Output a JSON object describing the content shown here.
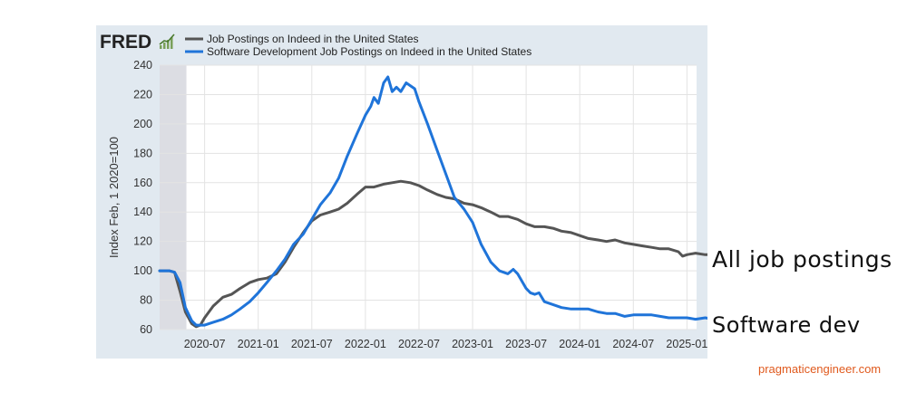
{
  "chart_data": {
    "type": "line",
    "source_logo": "FRED",
    "ylabel": "Index Feb, 1 2020=100",
    "ylim": [
      60,
      240
    ],
    "yticks": [
      60,
      80,
      100,
      120,
      140,
      160,
      180,
      200,
      220,
      240
    ],
    "xlim": [
      2020.08,
      2025.09
    ],
    "xticks": [
      {
        "label": "2020-07",
        "value": 2020.5
      },
      {
        "label": "2021-01",
        "value": 2021.0
      },
      {
        "label": "2021-07",
        "value": 2021.5
      },
      {
        "label": "2022-01",
        "value": 2022.0
      },
      {
        "label": "2022-07",
        "value": 2022.5
      },
      {
        "label": "2023-01",
        "value": 2023.0
      },
      {
        "label": "2023-07",
        "value": 2023.5
      },
      {
        "label": "2024-01",
        "value": 2024.0
      },
      {
        "label": "2024-07",
        "value": 2024.5
      },
      {
        "label": "2025-01",
        "value": 2025.0
      }
    ],
    "recession_shade": [
      2020.08,
      2020.33
    ],
    "grid": true,
    "legend_position": "top-left",
    "series": [
      {
        "name": "Job Postings on Indeed in the United States",
        "color": "#555555",
        "points": [
          [
            2020.08,
            100
          ],
          [
            2020.17,
            100
          ],
          [
            2020.22,
            99
          ],
          [
            2020.27,
            86
          ],
          [
            2020.32,
            72
          ],
          [
            2020.38,
            64
          ],
          [
            2020.42,
            62
          ],
          [
            2020.46,
            63
          ],
          [
            2020.5,
            68
          ],
          [
            2020.58,
            76
          ],
          [
            2020.67,
            82
          ],
          [
            2020.75,
            84
          ],
          [
            2020.83,
            88
          ],
          [
            2020.92,
            92
          ],
          [
            2021.0,
            94
          ],
          [
            2021.08,
            95
          ],
          [
            2021.17,
            98
          ],
          [
            2021.25,
            106
          ],
          [
            2021.33,
            116
          ],
          [
            2021.42,
            126
          ],
          [
            2021.5,
            134
          ],
          [
            2021.58,
            138
          ],
          [
            2021.67,
            140
          ],
          [
            2021.75,
            142
          ],
          [
            2021.83,
            146
          ],
          [
            2021.92,
            152
          ],
          [
            2022.0,
            157
          ],
          [
            2022.08,
            157
          ],
          [
            2022.17,
            159
          ],
          [
            2022.25,
            160
          ],
          [
            2022.33,
            161
          ],
          [
            2022.42,
            160
          ],
          [
            2022.5,
            158
          ],
          [
            2022.58,
            155
          ],
          [
            2022.67,
            152
          ],
          [
            2022.75,
            150
          ],
          [
            2022.83,
            149
          ],
          [
            2022.92,
            146
          ],
          [
            2023.0,
            145
          ],
          [
            2023.08,
            143
          ],
          [
            2023.17,
            140
          ],
          [
            2023.25,
            137
          ],
          [
            2023.33,
            137
          ],
          [
            2023.42,
            135
          ],
          [
            2023.5,
            132
          ],
          [
            2023.58,
            130
          ],
          [
            2023.67,
            130
          ],
          [
            2023.75,
            129
          ],
          [
            2023.83,
            127
          ],
          [
            2023.92,
            126
          ],
          [
            2024.0,
            124
          ],
          [
            2024.08,
            122
          ],
          [
            2024.17,
            121
          ],
          [
            2024.25,
            120
          ],
          [
            2024.33,
            121
          ],
          [
            2024.42,
            119
          ],
          [
            2024.5,
            118
          ],
          [
            2024.58,
            117
          ],
          [
            2024.67,
            116
          ],
          [
            2024.75,
            115
          ],
          [
            2024.83,
            115
          ],
          [
            2024.92,
            113
          ],
          [
            2024.96,
            110
          ],
          [
            2025.0,
            111
          ],
          [
            2025.08,
            112
          ],
          [
            2025.17,
            111
          ],
          [
            2025.25,
            111
          ],
          [
            2025.3,
            110
          ]
        ]
      },
      {
        "name": "Software Development Job Postings on Indeed in the United States",
        "color": "#1f74d9",
        "points": [
          [
            2020.08,
            100
          ],
          [
            2020.17,
            100
          ],
          [
            2020.22,
            99
          ],
          [
            2020.27,
            92
          ],
          [
            2020.32,
            75
          ],
          [
            2020.38,
            66
          ],
          [
            2020.42,
            63
          ],
          [
            2020.5,
            63
          ],
          [
            2020.58,
            65
          ],
          [
            2020.67,
            67
          ],
          [
            2020.75,
            70
          ],
          [
            2020.83,
            74
          ],
          [
            2020.92,
            79
          ],
          [
            2021.0,
            85
          ],
          [
            2021.08,
            92
          ],
          [
            2021.17,
            100
          ],
          [
            2021.25,
            108
          ],
          [
            2021.33,
            118
          ],
          [
            2021.42,
            125
          ],
          [
            2021.5,
            135
          ],
          [
            2021.58,
            145
          ],
          [
            2021.67,
            153
          ],
          [
            2021.75,
            163
          ],
          [
            2021.83,
            178
          ],
          [
            2021.92,
            193
          ],
          [
            2022.0,
            206
          ],
          [
            2022.05,
            212
          ],
          [
            2022.08,
            218
          ],
          [
            2022.12,
            214
          ],
          [
            2022.17,
            228
          ],
          [
            2022.21,
            232
          ],
          [
            2022.25,
            222
          ],
          [
            2022.29,
            225
          ],
          [
            2022.33,
            222
          ],
          [
            2022.38,
            228
          ],
          [
            2022.42,
            226
          ],
          [
            2022.46,
            224
          ],
          [
            2022.5,
            215
          ],
          [
            2022.58,
            200
          ],
          [
            2022.67,
            182
          ],
          [
            2022.75,
            166
          ],
          [
            2022.83,
            150
          ],
          [
            2022.92,
            142
          ],
          [
            2023.0,
            133
          ],
          [
            2023.08,
            118
          ],
          [
            2023.17,
            106
          ],
          [
            2023.25,
            100
          ],
          [
            2023.33,
            98
          ],
          [
            2023.38,
            101
          ],
          [
            2023.42,
            98
          ],
          [
            2023.5,
            88
          ],
          [
            2023.54,
            85
          ],
          [
            2023.58,
            84
          ],
          [
            2023.62,
            85
          ],
          [
            2023.67,
            79
          ],
          [
            2023.75,
            77
          ],
          [
            2023.83,
            75
          ],
          [
            2023.92,
            74
          ],
          [
            2024.0,
            74
          ],
          [
            2024.08,
            74
          ],
          [
            2024.17,
            72
          ],
          [
            2024.25,
            71
          ],
          [
            2024.33,
            71
          ],
          [
            2024.42,
            69
          ],
          [
            2024.5,
            70
          ],
          [
            2024.58,
            70
          ],
          [
            2024.67,
            70
          ],
          [
            2024.75,
            69
          ],
          [
            2024.83,
            68
          ],
          [
            2024.92,
            68
          ],
          [
            2025.0,
            68
          ],
          [
            2025.08,
            67
          ],
          [
            2025.17,
            68
          ],
          [
            2025.25,
            67
          ],
          [
            2025.3,
            66
          ]
        ]
      }
    ]
  },
  "annotations": {
    "all_jobs": "All job postings",
    "software": "Software dev"
  },
  "footer": {
    "site": "pragmaticengineer.com"
  },
  "colors": {
    "panel_bg": "#e1e9f0",
    "plot_bg": "#ffffff",
    "grid": "#e3e3e3",
    "recession": "#dcdde3",
    "accent": "#e05a1e"
  }
}
